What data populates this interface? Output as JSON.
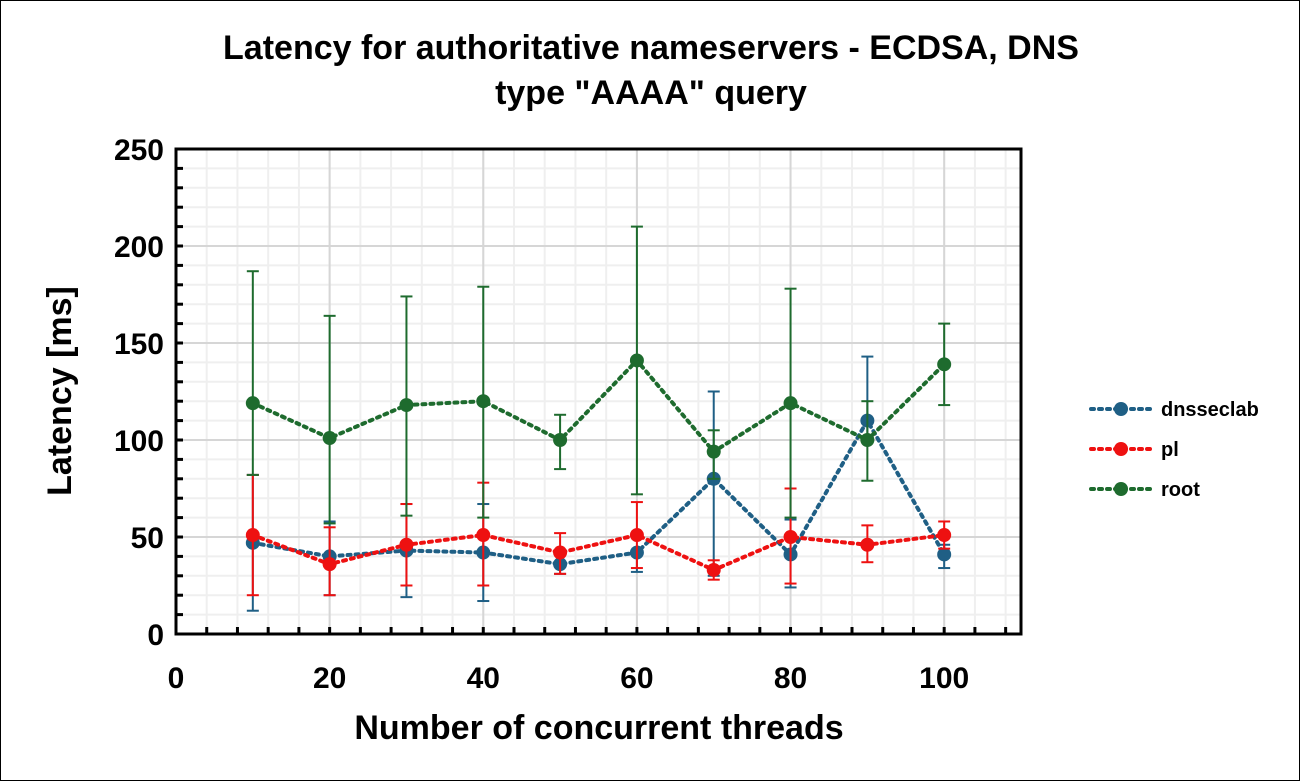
{
  "chart_data": {
    "type": "line",
    "title_lines": [
      "Latency for authoritative nameservers - ECDSA, DNS",
      "type \"AAAA\" query"
    ],
    "xlabel": "Number of concurrent threads",
    "ylabel": "Latency [ms]",
    "xlim": [
      0,
      110
    ],
    "ylim": [
      0,
      250
    ],
    "xticks": [
      0,
      20,
      40,
      60,
      80,
      100
    ],
    "yticks": [
      0,
      50,
      100,
      150,
      200,
      250
    ],
    "grid": true,
    "legend_position": "right",
    "x": [
      10,
      20,
      30,
      40,
      50,
      60,
      70,
      80,
      90,
      100
    ],
    "series": [
      {
        "name": "dnsseclab",
        "color": "#1f5f85",
        "values": [
          47,
          40,
          43,
          42,
          36,
          42,
          80,
          41,
          110,
          41
        ],
        "err_high": [
          82,
          58,
          67,
          67,
          36,
          42,
          125,
          59,
          143,
          46
        ],
        "err_low": [
          12,
          20,
          19,
          17,
          31,
          32,
          30,
          24,
          100,
          34
        ]
      },
      {
        "name": "pl",
        "color": "#ee1111",
        "values": [
          51,
          36,
          46,
          51,
          42,
          51,
          33,
          50,
          46,
          51
        ],
        "err_high": [
          82,
          55,
          67,
          78,
          52,
          68,
          38,
          75,
          56,
          58
        ],
        "err_low": [
          20,
          20,
          25,
          25,
          31,
          34,
          28,
          26,
          37,
          44
        ]
      },
      {
        "name": "root",
        "color": "#1e6b2e",
        "values": [
          119,
          101,
          118,
          120,
          100,
          141,
          94,
          119,
          100,
          139
        ],
        "err_high": [
          187,
          164,
          174,
          179,
          113,
          210,
          105,
          178,
          120,
          160
        ],
        "err_low": [
          82,
          57,
          61,
          60,
          85,
          72,
          80,
          60,
          79,
          118
        ]
      }
    ]
  }
}
